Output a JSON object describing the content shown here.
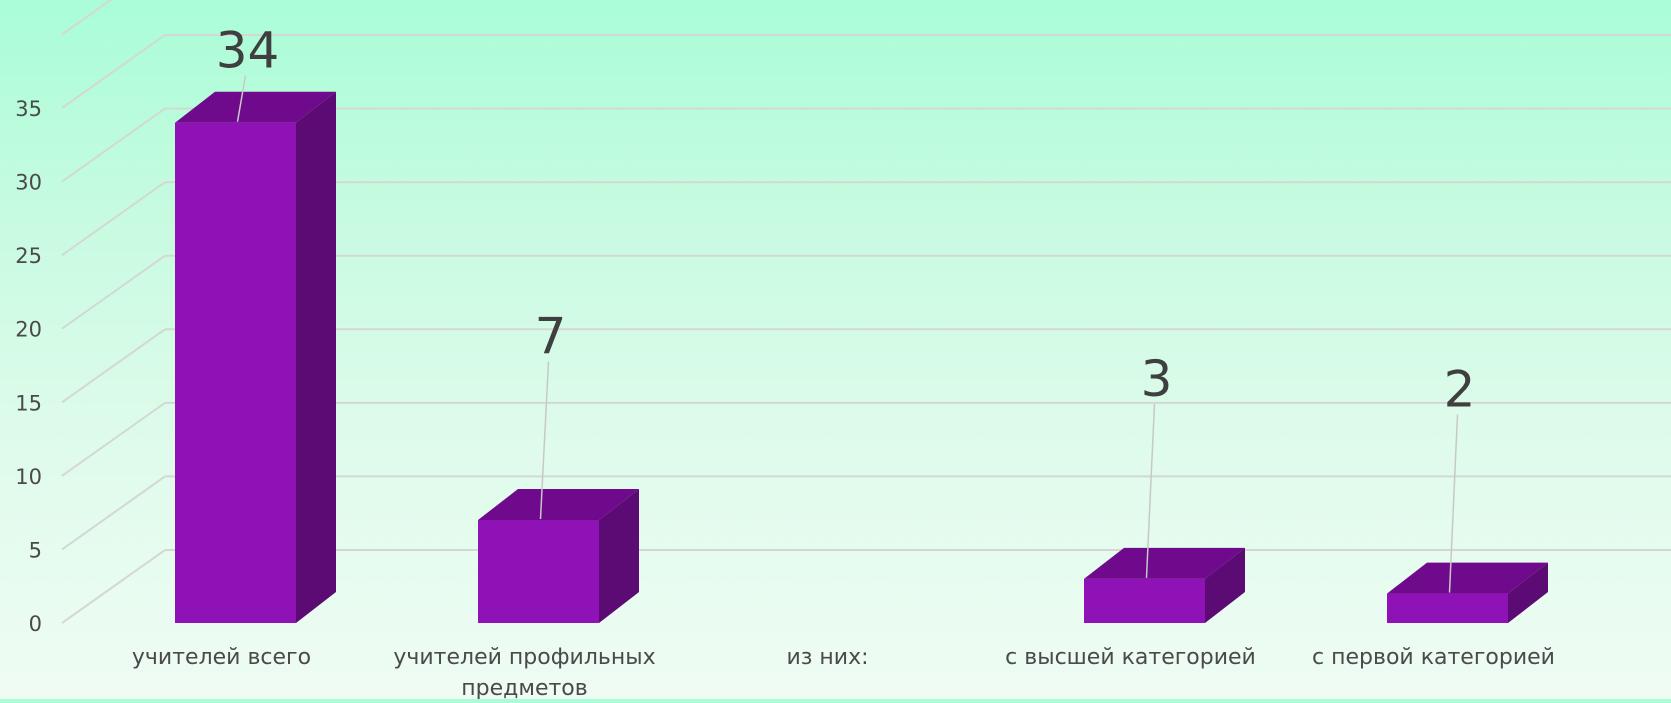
{
  "chart_data": {
    "type": "bar",
    "style": "3d-column",
    "categories": [
      "учителей всего",
      "учителей профильных предметов",
      "из них:",
      "с высшей категорией",
      "с первой категорией"
    ],
    "category_lines": [
      [
        "учителей всего"
      ],
      [
        "учителей профильных",
        "предметов"
      ],
      [
        "из них:"
      ],
      [
        "с высшей категорией"
      ],
      [
        "с первой категорией"
      ]
    ],
    "values": [
      34,
      7,
      null,
      3,
      2
    ],
    "data_labels": [
      "34",
      "7",
      "",
      "3",
      "2"
    ],
    "y_ticks": [
      "0",
      "5",
      "10",
      "15",
      "20",
      "25",
      "30",
      "35"
    ],
    "ylim": [
      0,
      35
    ],
    "grid": true,
    "legend": "none",
    "title": "",
    "xlabel": "",
    "ylabel": ""
  },
  "colors": {
    "bar_front": "#8e12b6",
    "bar_top": "#6f0a8c",
    "bar_side": "#5c0a74",
    "grid": "#d3d8d4",
    "text": "#4a4a4a",
    "leader": "#c8c8c8"
  }
}
